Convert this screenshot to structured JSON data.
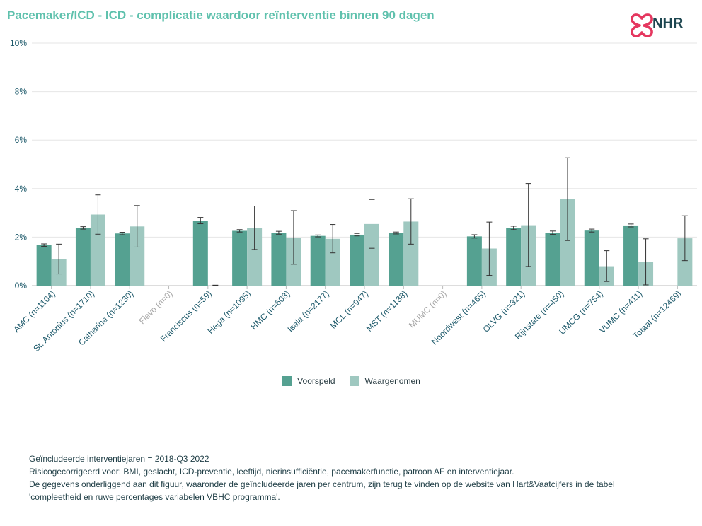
{
  "title": "Pacemaker/ICD - ICD - complicatie waardoor reïnterventie binnen 90 dagen",
  "logo": {
    "text": "NHR",
    "icon": "nhr-heart-logo-icon",
    "color": "#e5375f"
  },
  "colors": {
    "voorspeld": "#55a191",
    "waargenomen": "#9fc8c0",
    "label": "#1e5a6b",
    "label_muted": "#a6a6a6",
    "grid": "#e6e6e6",
    "axis": "#bbbbbb"
  },
  "legend": {
    "voorspeld": "Voorspeld",
    "waargenomen": "Waargenomen"
  },
  "footer": {
    "line1": "Geïncludeerde interventiejaren = 2018-Q3 2022",
    "line2": "Risicogecorrigeerd voor: BMI, geslacht, ICD-preventie, leeftijd, nierinsufficiëntie, pacemakerfunctie, patroon AF en interventiejaar.",
    "line3": "De gegevens onderliggend aan dit figuur, waaronder de geïncludeerde jaren per centrum, zijn terug te vinden op de website van Hart&Vaatcijfers in de tabel",
    "line4": "'compleetheid en ruwe percentages variabelen VBHC programma'."
  },
  "chart_data": {
    "type": "bar",
    "ylim": [
      0,
      10
    ],
    "yticks": [
      "0%",
      "2%",
      "4%",
      "6%",
      "8%",
      "10%"
    ],
    "categories": [
      "AMC (n=1104)",
      "St. Antonius (n=1710)",
      "Catharina (n=1230)",
      "Flevo (n=0)",
      "Franciscus (n=59)",
      "Haga (n=1095)",
      "HMC (n=608)",
      "Isala (n=2177)",
      "MCL (n=947)",
      "MST (n=1138)",
      "MUMC (n=0)",
      "Noordwest (n=465)",
      "OLVG (n=321)",
      "Rijnstate (n=450)",
      "UMCG (n=754)",
      "VUMC (n=411)",
      "Totaal (n=12469)"
    ],
    "muted": [
      false,
      false,
      false,
      true,
      false,
      false,
      false,
      false,
      false,
      false,
      true,
      false,
      false,
      false,
      false,
      false,
      false
    ],
    "series": [
      {
        "name": "Voorspeld",
        "values": [
          1.67,
          2.38,
          2.15,
          null,
          2.68,
          2.26,
          2.18,
          2.05,
          2.1,
          2.17,
          null,
          2.03,
          2.38,
          2.18,
          2.27,
          2.48,
          null
        ],
        "err_low": [
          1.62,
          2.33,
          2.1,
          null,
          2.55,
          2.21,
          2.12,
          2.01,
          2.05,
          2.13,
          null,
          1.96,
          2.31,
          2.11,
          2.21,
          2.42,
          null
        ],
        "err_high": [
          1.72,
          2.43,
          2.2,
          null,
          2.81,
          2.31,
          2.24,
          2.09,
          2.15,
          2.21,
          null,
          2.1,
          2.45,
          2.25,
          2.33,
          2.54,
          null
        ]
      },
      {
        "name": "Waargenomen",
        "values": [
          1.1,
          2.93,
          2.44,
          null,
          0.0,
          2.38,
          1.98,
          1.93,
          2.54,
          2.64,
          null,
          1.53,
          2.49,
          3.56,
          0.8,
          0.97,
          1.95
        ],
        "err_low": [
          0.48,
          2.12,
          1.59,
          null,
          0.0,
          1.49,
          0.88,
          1.35,
          1.54,
          1.71,
          null,
          0.42,
          0.79,
          1.86,
          0.17,
          0.03,
          1.03
        ],
        "err_high": [
          1.71,
          3.74,
          3.3,
          null,
          0.02,
          3.28,
          3.09,
          2.52,
          3.55,
          3.58,
          null,
          2.62,
          4.21,
          5.27,
          1.44,
          1.93,
          2.88
        ]
      }
    ]
  }
}
